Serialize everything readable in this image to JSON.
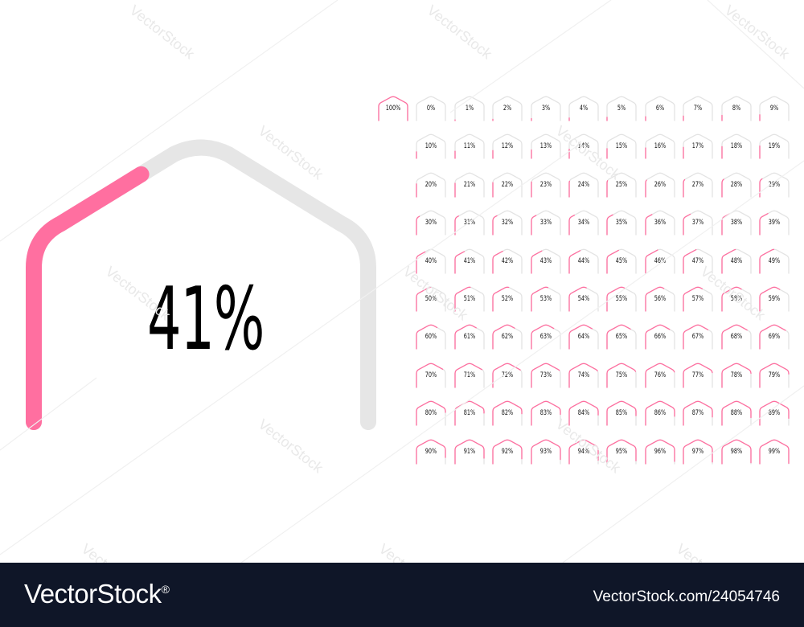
{
  "gauge": {
    "value_label": "41%",
    "percent": 41
  },
  "grid": {
    "labels": [
      "100%",
      "0%",
      "1%",
      "2%",
      "3%",
      "4%",
      "5%",
      "6%",
      "7%",
      "8%",
      "9%",
      "10%",
      "11%",
      "12%",
      "13%",
      "14%",
      "15%",
      "16%",
      "17%",
      "18%",
      "19%",
      "20%",
      "21%",
      "22%",
      "23%",
      "24%",
      "25%",
      "26%",
      "27%",
      "28%",
      "29%",
      "30%",
      "31%",
      "32%",
      "33%",
      "34%",
      "35%",
      "36%",
      "37%",
      "38%",
      "39%",
      "40%",
      "41%",
      "42%",
      "43%",
      "44%",
      "45%",
      "46%",
      "47%",
      "48%",
      "49%",
      "50%",
      "51%",
      "52%",
      "53%",
      "54%",
      "55%",
      "56%",
      "57%",
      "58%",
      "59%",
      "60%",
      "61%",
      "62%",
      "63%",
      "64%",
      "65%",
      "66%",
      "67%",
      "68%",
      "69%",
      "70%",
      "71%",
      "72%",
      "73%",
      "74%",
      "75%",
      "76%",
      "77%",
      "78%",
      "79%",
      "80%",
      "81%",
      "82%",
      "83%",
      "84%",
      "85%",
      "86%",
      "87%",
      "88%",
      "89%",
      "90%",
      "91%",
      "92%",
      "93%",
      "94%",
      "95%",
      "96%",
      "97%",
      "98%",
      "99%"
    ]
  },
  "footer": {
    "logo": "VectorStock",
    "registered": "®",
    "image_id": "VectorStock.com/24054746"
  },
  "watermark": {
    "text": "VectorStock"
  },
  "colors": {
    "accent": "#ff6fa0",
    "track": "#e6e6e6",
    "footer_bg": "#0f1628"
  }
}
